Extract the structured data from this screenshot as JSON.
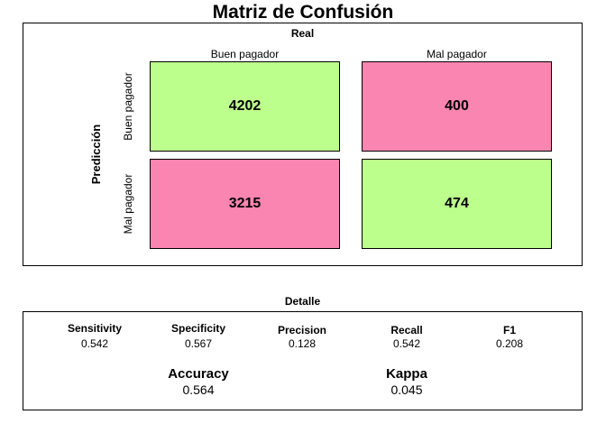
{
  "title": "Matriz de Confusión",
  "colors": {
    "correct": "#bdff8c",
    "incorrect": "#f985b0"
  },
  "chart_data": {
    "type": "table",
    "col_header": "Real",
    "row_header": "Predicción",
    "col_labels": [
      "Buen pagador",
      "Mal pagador"
    ],
    "row_labels": [
      "Buen pagador",
      "Mal pagador"
    ],
    "cells": [
      {
        "predicted": "Buen pagador",
        "actual": "Buen pagador",
        "value": "4202"
      },
      {
        "predicted": "Buen pagador",
        "actual": "Mal pagador",
        "value": "400"
      },
      {
        "predicted": "Mal pagador",
        "actual": "Buen pagador",
        "value": "3215"
      },
      {
        "predicted": "Mal pagador",
        "actual": "Mal pagador",
        "value": "474"
      }
    ]
  },
  "details": {
    "heading": "Detalle",
    "metrics": [
      {
        "name": "Sensitivity",
        "value": "0.542"
      },
      {
        "name": "Specificity",
        "value": "0.567"
      },
      {
        "name": "Precision",
        "value": "0.128"
      },
      {
        "name": "Recall",
        "value": "0.542"
      },
      {
        "name": "F1",
        "value": "0.208"
      }
    ],
    "summary": [
      {
        "name": "Accuracy",
        "value": "0.564"
      },
      {
        "name": "Kappa",
        "value": "0.045"
      }
    ]
  }
}
